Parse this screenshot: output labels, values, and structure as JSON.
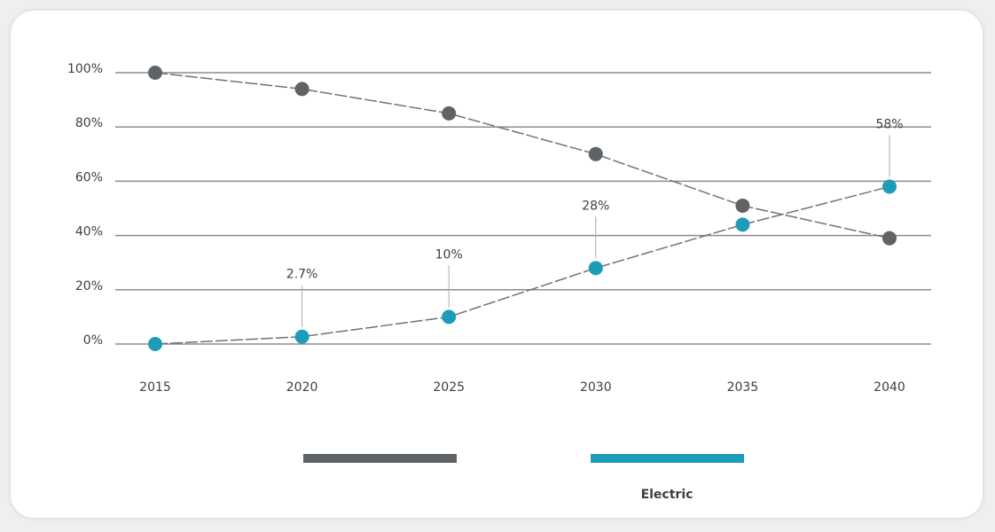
{
  "chart_data": {
    "type": "line",
    "categories": [
      "2015",
      "2020",
      "2025",
      "2030",
      "2035",
      "2040"
    ],
    "series": [
      {
        "color": "#5f6366",
        "values": [
          100,
          94,
          85,
          70,
          51,
          39
        ]
      },
      {
        "name": "Electric",
        "color": "#1e9bb8",
        "values": [
          0,
          2.7,
          10,
          28,
          44,
          58
        ],
        "value_labels": [
          null,
          "2.7%",
          "10%",
          "28%",
          null,
          "58%"
        ]
      }
    ],
    "ylim": [
      0,
      100
    ],
    "yticks": [
      {
        "value": 0,
        "label": "0%"
      },
      {
        "value": 20,
        "label": "20%"
      },
      {
        "value": 40,
        "label": "40%"
      },
      {
        "value": 60,
        "label": "60%"
      },
      {
        "value": 80,
        "label": "80%"
      },
      {
        "value": 100,
        "label": "100%"
      }
    ],
    "grid": true
  }
}
